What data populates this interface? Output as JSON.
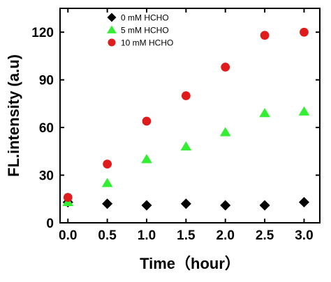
{
  "chart_data": {
    "type": "scatter",
    "xlabel": "Time（hour）",
    "ylabel": "FL.intensity (a.u)",
    "xlim": [
      -0.1,
      3.2
    ],
    "ylim": [
      0,
      135
    ],
    "xticks": [
      "0.0",
      "0.5",
      "1.0",
      "1.5",
      "2.0",
      "2.5",
      "3.0"
    ],
    "yticks": [
      "0",
      "30",
      "60",
      "90",
      "120"
    ],
    "legend_position": "top-left",
    "grid": false,
    "x": [
      0.0,
      0.5,
      1.0,
      1.5,
      2.0,
      2.5,
      3.0
    ],
    "series": [
      {
        "name": "0 mM HCHO",
        "marker": "diamond",
        "color": "#000000",
        "values": [
          13,
          12,
          11,
          12,
          11,
          11,
          13
        ]
      },
      {
        "name": "5 mM HCHO",
        "marker": "triangle",
        "color": "#33ee33",
        "values": [
          13,
          25,
          40,
          48,
          57,
          69,
          70
        ]
      },
      {
        "name": "10 mM HCHO",
        "marker": "circle",
        "color": "#e01b1b",
        "values": [
          16,
          37,
          64,
          80,
          98,
          118,
          120
        ]
      }
    ]
  }
}
